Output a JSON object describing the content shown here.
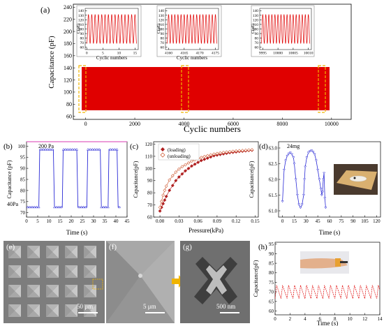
{
  "panel_labels": [
    "(a)",
    "(b)",
    "(c)",
    "(d)",
    "(e)",
    "(f)",
    "(g)",
    "(h)"
  ],
  "colors": {
    "red": "#e00000",
    "blue": "#2a2ad6",
    "dark_red": "#b02020",
    "orange_hollow": "#d0603a",
    "yellow_box": "#f0b400",
    "sem_gray": "#8a8a8a"
  },
  "chart_data": [
    {
      "id": "a-main",
      "type": "area",
      "xlabel": "Cyclic numbers",
      "ylabel": "Capacitance (pF)",
      "xlim": [
        -500,
        10800
      ],
      "ylim": [
        55,
        245
      ],
      "xticks": [
        "0",
        "2000",
        "4000",
        "6000",
        "8000",
        "10000"
      ],
      "yticks": [
        "60",
        "80",
        "100",
        "120",
        "140",
        "160",
        "180",
        "200",
        "220",
        "240"
      ],
      "series": [
        {
          "x_range": [
            0,
            10400
          ],
          "y_min": 66,
          "y_max": 133,
          "color": "#e00000"
        }
      ],
      "highlight_windows": [
        [
          0,
          200
        ],
        [
          4160,
          4340
        ],
        [
          9960,
          10100
        ]
      ]
    },
    {
      "id": "a-inset1",
      "type": "line",
      "xlabel": "Cyclic numbers",
      "ylabel": "C(pF)",
      "xlim": [
        -0.5,
        16
      ],
      "ylim": [
        55,
        145
      ],
      "xticks": [
        "0",
        "5",
        "10",
        "15"
      ],
      "yticks": [
        "60",
        "70",
        "80",
        "90",
        "100",
        "110",
        "120",
        "130",
        "140"
      ],
      "series": [
        {
          "cycles": 15,
          "y_min": 68,
          "y_max": 132
        }
      ]
    },
    {
      "id": "a-inset2",
      "type": "line",
      "xlabel": "Cyclic numbers",
      "ylabel": "C(pF)",
      "xlim": [
        4159,
        4176
      ],
      "ylim": [
        55,
        145
      ],
      "xticks": [
        "4160",
        "4165",
        "4170",
        "4175"
      ],
      "yticks": [
        "60",
        "70",
        "80",
        "90",
        "100",
        "110",
        "120",
        "130",
        "140"
      ],
      "series": [
        {
          "cycles": 16,
          "y_min": 68,
          "y_max": 132
        }
      ]
    },
    {
      "id": "a-inset3",
      "type": "line",
      "xlabel": "Cyclic numbers",
      "ylabel": "C(pF)",
      "xlim": [
        9994,
        10011
      ],
      "ylim": [
        55,
        145
      ],
      "xticks": [
        "9995",
        "10000",
        "10005",
        "10010"
      ],
      "yticks": [
        "60",
        "70",
        "80",
        "90",
        "100",
        "110",
        "120",
        "130",
        "140"
      ],
      "series": [
        {
          "cycles": 16,
          "y_min": 68,
          "y_max": 132
        }
      ]
    },
    {
      "id": "b",
      "type": "line",
      "xlabel": "Time (s)",
      "ylabel": "Capacitance (pF)",
      "xlim": [
        0,
        45
      ],
      "ylim": [
        68,
        102
      ],
      "xticks": [
        "0",
        "5",
        "10",
        "15",
        "20",
        "25",
        "30",
        "35",
        "40",
        "45"
      ],
      "yticks": [
        "70",
        "75",
        "80",
        "85",
        "90",
        "95",
        "100"
      ],
      "annotations": [
        "200 Pa",
        "40Pa"
      ],
      "series": [
        {
          "low": 72.5,
          "high": 98.5,
          "color": "#2a2ad6",
          "on_intervals": [
            [
              5.5,
              12
            ],
            [
              16,
              22.5
            ],
            [
              27,
              33
            ],
            [
              36.5,
              40.5
            ]
          ]
        }
      ]
    },
    {
      "id": "c",
      "type": "scatter",
      "xlabel": "Pressure(kPa)",
      "ylabel": "Capacitance(pF)",
      "xlim": [
        -0.01,
        0.155
      ],
      "ylim": [
        60,
        122
      ],
      "xticks": [
        "0.00",
        "0.03",
        "0.06",
        "0.09",
        "0.12",
        "0.15"
      ],
      "yticks": [
        "60",
        "70",
        "80",
        "90",
        "100",
        "110",
        "120"
      ],
      "legend_position": "top-left",
      "series": [
        {
          "name": "(loading)",
          "marker": "filled-diamond",
          "color": "#b02020",
          "x": [
            0,
            0.0025,
            0.005,
            0.0075,
            0.01,
            0.015,
            0.02,
            0.025,
            0.03,
            0.035,
            0.04,
            0.045,
            0.05,
            0.055,
            0.06,
            0.065,
            0.07,
            0.075,
            0.08,
            0.085,
            0.09,
            0.095,
            0.1,
            0.105,
            0.11,
            0.115,
            0.12,
            0.125,
            0.13,
            0.135,
            0.14,
            0.145
          ],
          "y": [
            65,
            68,
            71,
            74,
            77,
            82,
            86,
            90,
            93,
            95.5,
            98,
            100,
            102,
            103.5,
            105,
            106.5,
            107.5,
            108.5,
            109.5,
            110.5,
            111,
            111.5,
            112,
            112.5,
            113,
            113.3,
            113.6,
            114,
            114.2,
            114.5,
            114.8,
            115
          ]
        },
        {
          "name": "(unloading)",
          "marker": "hollow-diamond",
          "color": "#d0603a",
          "x": [
            0,
            0.0025,
            0.005,
            0.0075,
            0.01,
            0.015,
            0.02,
            0.025,
            0.03,
            0.035,
            0.04,
            0.045,
            0.05,
            0.055,
            0.06,
            0.065,
            0.07,
            0.075,
            0.08,
            0.085,
            0.09,
            0.095,
            0.1,
            0.105,
            0.11,
            0.115,
            0.12,
            0.125,
            0.13,
            0.135,
            0.14,
            0.145
          ],
          "y": [
            68,
            73,
            78,
            82,
            85.5,
            90.5,
            94,
            97,
            99.5,
            101.5,
            103,
            104.5,
            106,
            107,
            108,
            109,
            109.8,
            110.5,
            111.2,
            111.8,
            112.3,
            112.8,
            113.2,
            113.5,
            113.8,
            114.1,
            114.4,
            114.6,
            114.8,
            115,
            115.2,
            115.4
          ]
        }
      ]
    },
    {
      "id": "d",
      "type": "line",
      "xlabel": "Time (s)",
      "ylabel": "Capacitance(pF)",
      "xlim": [
        -5,
        125
      ],
      "ylim": [
        60.8,
        63.2
      ],
      "xticks": [
        "0",
        "15",
        "30",
        "45",
        "60",
        "75",
        "90",
        "105",
        "120"
      ],
      "yticks": [
        "61.0",
        "61.5",
        "62.0",
        "62.5",
        "63.0"
      ],
      "annotations": [
        "24mg"
      ],
      "series": [
        {
          "color": "#2a2ad6",
          "x": [
            0,
            2,
            4,
            6,
            8,
            10,
            12,
            14,
            15,
            17,
            19,
            21,
            23,
            25,
            27,
            28,
            29,
            31,
            33,
            35,
            37,
            39,
            41,
            43,
            45,
            47,
            49,
            50,
            51,
            52,
            53,
            54,
            55
          ],
          "y": [
            61.3,
            62.3,
            62.6,
            62.75,
            62.82,
            62.85,
            62.8,
            62.7,
            62.5,
            62.0,
            61.5,
            61.2,
            61.1,
            61.2,
            61.5,
            62.0,
            62.4,
            62.7,
            62.85,
            62.9,
            62.92,
            62.88,
            62.8,
            62.6,
            62.3,
            62.0,
            61.7,
            61.5,
            61.6,
            62.0,
            62.2,
            61.4,
            61.1
          ]
        }
      ]
    },
    {
      "id": "h",
      "type": "line",
      "xlabel": "Time (s)",
      "ylabel": "Capacitance(pF)",
      "xlim": [
        0,
        14
      ],
      "ylim": [
        58,
        96
      ],
      "xticks": [
        "0",
        "2",
        "4",
        "6",
        "8",
        "10",
        "12",
        "14"
      ],
      "yticks": [
        "60",
        "65",
        "70",
        "75",
        "80",
        "85",
        "90",
        "95"
      ],
      "series": [
        {
          "color": "#e00000",
          "period_s": 0.8,
          "peak": 73.5,
          "trough": 66.5
        }
      ]
    }
  ],
  "sem": {
    "e_scale": "50 μm",
    "f_scale": "5 μm",
    "g_scale": "500 nm"
  }
}
